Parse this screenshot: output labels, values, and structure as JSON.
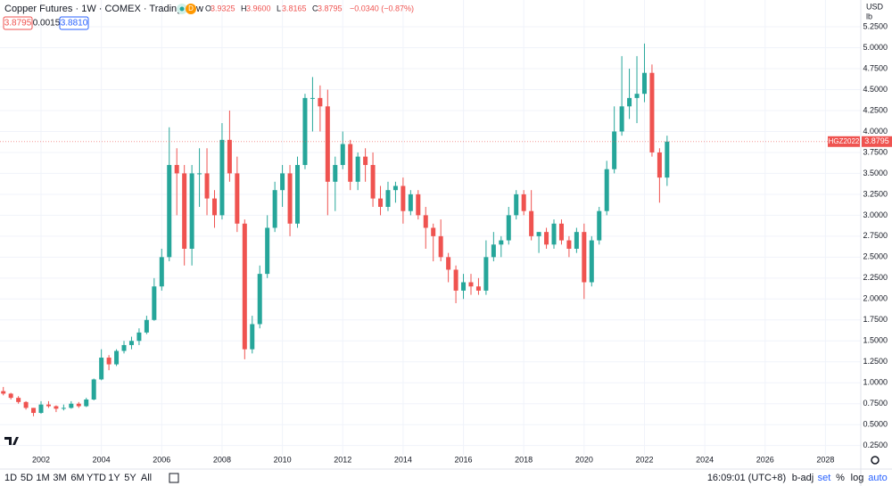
{
  "header": {
    "title": "Copper Futures · 1W · COMEX · TradingView",
    "badge": "D",
    "ohlc": [
      {
        "label": "O",
        "value": "3.9325"
      },
      {
        "label": "H",
        "value": "3.9600"
      },
      {
        "label": "L",
        "value": "3.8165"
      },
      {
        "label": "C",
        "value": "3.8795"
      }
    ],
    "change": "−0.0340 (−0.87%)",
    "bid": "3.8795",
    "spread": "0.0015",
    "ask": "3.8810"
  },
  "axis_units": {
    "currency": "USD",
    "unit": "lb"
  },
  "toolbar": {
    "ranges": [
      "1D",
      "5D",
      "1M",
      "3M",
      "6M",
      "YTD",
      "1Y",
      "5Y",
      "All"
    ],
    "clock": "16:09:01 (UTC+8)",
    "options": [
      "b-adj",
      "set",
      "%",
      "log",
      "auto"
    ]
  },
  "chart_data": {
    "type": "candlestick",
    "up_color": "#26a69a",
    "down_color": "#ef5350",
    "grid": true,
    "price_tag": {
      "symbol": "HGZ2022",
      "value": 3.8795
    },
    "xlim": [
      2000.64,
      2029.17
    ],
    "xticks": [
      2002,
      2004,
      2006,
      2008,
      2010,
      2012,
      2014,
      2016,
      2018,
      2020,
      2022,
      2024,
      2026,
      2028
    ],
    "ylim": [
      0.14,
      5.57
    ],
    "yticks": [
      {
        "value": 0.25,
        "label": "0.2500"
      },
      {
        "value": 0.5,
        "label": "0.5000"
      },
      {
        "value": 0.75,
        "label": "0.7500"
      },
      {
        "value": 1,
        "label": "1.0000"
      },
      {
        "value": 1.25,
        "label": "1.2500"
      },
      {
        "value": 1.5,
        "label": "1.5000"
      },
      {
        "value": 1.75,
        "label": "1.7500"
      },
      {
        "value": 2,
        "label": "2.0000"
      },
      {
        "value": 2.25,
        "label": "2.2500"
      },
      {
        "value": 2.5,
        "label": "2.5000"
      },
      {
        "value": 2.75,
        "label": "2.7500"
      },
      {
        "value": 3,
        "label": "3.0000"
      },
      {
        "value": 3.25,
        "label": "3.2500"
      },
      {
        "value": 3.5,
        "label": "3.5000"
      },
      {
        "value": 3.75,
        "label": "3.7500"
      },
      {
        "value": 4,
        "label": "4.0000"
      },
      {
        "value": 4.25,
        "label": "4.2500"
      },
      {
        "value": 4.5,
        "label": "4.5000"
      },
      {
        "value": 4.75,
        "label": "4.7500"
      },
      {
        "value": 5,
        "label": "5.0000"
      },
      {
        "value": 5.25,
        "label": "5.2500"
      }
    ],
    "x": [
      2000.75,
      2001,
      2001.25,
      2001.5,
      2001.75,
      2002,
      2002.25,
      2002.5,
      2002.75,
      2003,
      2003.25,
      2003.5,
      2003.75,
      2004,
      2004.25,
      2004.5,
      2004.75,
      2005,
      2005.25,
      2005.5,
      2005.75,
      2006,
      2006.25,
      2006.5,
      2006.75,
      2007,
      2007.25,
      2007.5,
      2007.75,
      2008,
      2008.25,
      2008.5,
      2008.75,
      2009,
      2009.25,
      2009.5,
      2009.75,
      2010,
      2010.25,
      2010.5,
      2010.75,
      2011,
      2011.25,
      2011.5,
      2011.75,
      2012,
      2012.25,
      2012.5,
      2012.75,
      2013,
      2013.25,
      2013.5,
      2013.75,
      2014,
      2014.25,
      2014.5,
      2014.75,
      2015,
      2015.25,
      2015.5,
      2015.75,
      2016,
      2016.25,
      2016.5,
      2016.75,
      2017,
      2017.25,
      2017.5,
      2017.75,
      2018,
      2018.25,
      2018.5,
      2018.75,
      2019,
      2019.25,
      2019.5,
      2019.75,
      2020,
      2020.25,
      2020.5,
      2020.75,
      2021,
      2021.25,
      2021.5,
      2021.75,
      2022,
      2022.25,
      2022.5,
      2022.75
    ],
    "open": [
      0.9,
      0.87,
      0.82,
      0.77,
      0.7,
      0.64,
      0.74,
      0.72,
      0.69,
      0.7,
      0.75,
      0.72,
      0.8,
      1.04,
      1.3,
      1.22,
      1.38,
      1.45,
      1.5,
      1.6,
      1.75,
      2.15,
      2.5,
      3.6,
      3.5,
      2.6,
      3.5,
      3.5,
      3.2,
      3,
      3.9,
      3.5,
      2.9,
      1.4,
      1.7,
      2.3,
      2.85,
      3.3,
      3.5,
      2.9,
      3.6,
      4.4,
      4.4,
      4.3,
      3.4,
      3.6,
      3.85,
      3.4,
      3.7,
      3.6,
      3.2,
      3.1,
      3.3,
      3.35,
      3.05,
      3.25,
      3,
      2.85,
      2.75,
      2.5,
      2.35,
      2.1,
      2.2,
      2.15,
      2.1,
      2.5,
      2.65,
      2.7,
      3,
      3.25,
      3.05,
      2.75,
      2.8,
      2.65,
      2.9,
      2.7,
      2.6,
      2.8,
      2.2,
      2.7,
      3.05,
      3.55,
      4,
      4.3,
      4.4,
      4.45,
      4.7,
      3.75,
      3.45
    ],
    "high": [
      0.95,
      0.88,
      0.84,
      0.78,
      0.7,
      0.78,
      0.78,
      0.73,
      0.74,
      0.78,
      0.77,
      0.82,
      1.05,
      1.4,
      1.33,
      1.4,
      1.5,
      1.55,
      1.65,
      1.8,
      2.25,
      2.6,
      4.05,
      3.8,
      3.6,
      3.6,
      3.8,
      3.8,
      3.3,
      4.1,
      4.25,
      3.7,
      2.95,
      1.8,
      2.4,
      3,
      3.4,
      3.6,
      3.6,
      3.7,
      4.45,
      4.65,
      4.55,
      4.5,
      3.7,
      4,
      3.9,
      3.75,
      3.8,
      3.75,
      3.35,
      3.4,
      3.4,
      3.45,
      3.3,
      3.3,
      3.1,
      2.9,
      2.95,
      2.55,
      2.4,
      2.3,
      2.3,
      2.25,
      2.7,
      2.8,
      2.75,
      3.1,
      3.3,
      3.3,
      3.3,
      2.8,
      2.85,
      2.95,
      2.95,
      2.75,
      2.85,
      2.9,
      2.75,
      3.1,
      3.65,
      4.3,
      4.9,
      4.75,
      4.9,
      5.05,
      4.8,
      3.8,
      3.95
    ],
    "low": [
      0.85,
      0.8,
      0.75,
      0.68,
      0.6,
      0.63,
      0.7,
      0.65,
      0.67,
      0.69,
      0.7,
      0.71,
      0.79,
      1.03,
      1.15,
      1.2,
      1.35,
      1.4,
      1.45,
      1.58,
      1.74,
      2.1,
      2.45,
      3,
      2.4,
      2.4,
      3.1,
      3,
      2.85,
      2.95,
      3.4,
      2.8,
      1.28,
      1.35,
      1.65,
      2.25,
      2.8,
      3.1,
      2.75,
      2.85,
      3.55,
      4,
      4,
      3,
      3.05,
      3.55,
      3.3,
      3.3,
      3.4,
      3.1,
      3,
      3.05,
      3.15,
      2.9,
      3,
      2.95,
      2.6,
      2.45,
      2.45,
      2.2,
      1.95,
      2,
      2.05,
      2.05,
      2.05,
      2.45,
      2.5,
      2.65,
      2.95,
      3,
      2.7,
      2.55,
      2.6,
      2.6,
      2.65,
      2.5,
      2.55,
      2,
      2.15,
      2.65,
      3,
      3.5,
      3.95,
      4.15,
      4.1,
      4.35,
      3.7,
      3.15,
      3.35
    ],
    "close": [
      0.87,
      0.82,
      0.77,
      0.7,
      0.64,
      0.74,
      0.72,
      0.69,
      0.7,
      0.75,
      0.72,
      0.8,
      1.04,
      1.3,
      1.22,
      1.38,
      1.45,
      1.5,
      1.6,
      1.75,
      2.15,
      2.5,
      3.6,
      3.5,
      2.6,
      3.5,
      3.5,
      3.2,
      3,
      3.9,
      3.5,
      2.9,
      1.4,
      1.7,
      2.3,
      2.85,
      3.3,
      3.5,
      2.9,
      3.6,
      4.4,
      4.4,
      4.3,
      3.4,
      3.6,
      3.85,
      3.4,
      3.7,
      3.6,
      3.2,
      3.1,
      3.3,
      3.35,
      3.05,
      3.25,
      3,
      2.85,
      2.75,
      2.5,
      2.35,
      2.1,
      2.2,
      2.15,
      2.1,
      2.5,
      2.65,
      2.7,
      3,
      3.25,
      3.05,
      2.75,
      2.8,
      2.65,
      2.9,
      2.7,
      2.6,
      2.8,
      2.2,
      2.7,
      3.05,
      3.55,
      4,
      4.3,
      4.4,
      4.45,
      4.7,
      3.75,
      3.45,
      3.8795
    ]
  }
}
